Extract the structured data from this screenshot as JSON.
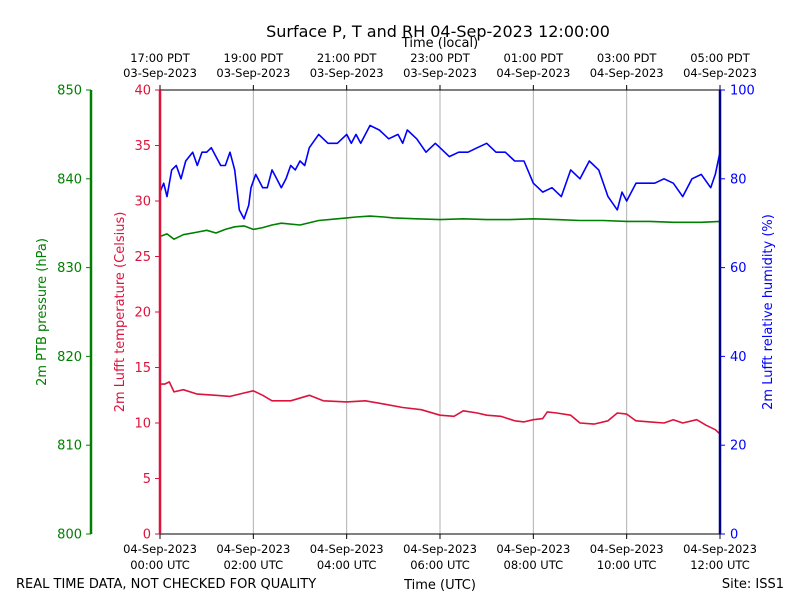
{
  "chart_data": {
    "type": "line",
    "title": "Surface P, T and RH 04-Sep-2023 12:00:00",
    "top_axis_title": "Time (local)",
    "bottom_axis_title": "Time (UTC)",
    "footer_left": "REAL TIME DATA, NOT CHECKED FOR QUALITY",
    "footer_right": "Site: ISS1",
    "x_range_hours_utc": [
      0,
      12
    ],
    "grid": "vertical lines at 2-hour ticks",
    "bottom_ticks": [
      {
        "h": 0,
        "line1": "04-Sep-2023",
        "line2": "00:00 UTC"
      },
      {
        "h": 2,
        "line1": "04-Sep-2023",
        "line2": "02:00 UTC"
      },
      {
        "h": 4,
        "line1": "04-Sep-2023",
        "line2": "04:00 UTC"
      },
      {
        "h": 6,
        "line1": "04-Sep-2023",
        "line2": "06:00 UTC"
      },
      {
        "h": 8,
        "line1": "04-Sep-2023",
        "line2": "08:00 UTC"
      },
      {
        "h": 10,
        "line1": "04-Sep-2023",
        "line2": "10:00 UTC"
      },
      {
        "h": 12,
        "line1": "04-Sep-2023",
        "line2": "12:00 UTC"
      }
    ],
    "top_ticks": [
      {
        "h": 0,
        "line1": "17:00 PDT",
        "line2": "03-Sep-2023"
      },
      {
        "h": 2,
        "line1": "19:00 PDT",
        "line2": "03-Sep-2023"
      },
      {
        "h": 4,
        "line1": "21:00 PDT",
        "line2": "03-Sep-2023"
      },
      {
        "h": 6,
        "line1": "23:00 PDT",
        "line2": "03-Sep-2023"
      },
      {
        "h": 8,
        "line1": "01:00 PDT",
        "line2": "04-Sep-2023"
      },
      {
        "h": 10,
        "line1": "03:00 PDT",
        "line2": "04-Sep-2023"
      },
      {
        "h": 12,
        "line1": "05:00 PDT",
        "line2": "04-Sep-2023"
      }
    ],
    "axes": {
      "pressure": {
        "label": "2m PTB pressure (hPa)",
        "color": "#008000",
        "range": [
          800,
          850
        ],
        "ticks": [
          800,
          810,
          820,
          830,
          840,
          850
        ]
      },
      "temperature": {
        "label": "2m Lufft temperature (Celsius)",
        "color": "#dc143c",
        "range": [
          0,
          40
        ],
        "ticks": [
          0,
          5,
          10,
          15,
          20,
          25,
          30,
          35,
          40
        ]
      },
      "humidity": {
        "label": "2m Lufft relative humidity (%)",
        "color": "#0000ff",
        "range": [
          0,
          100
        ],
        "ticks": [
          0,
          20,
          40,
          60,
          80,
          100
        ]
      }
    },
    "series": [
      {
        "axis": "pressure",
        "color": "#008000",
        "x": [
          0,
          0.15,
          0.3,
          0.5,
          0.8,
          1.0,
          1.2,
          1.4,
          1.6,
          1.8,
          2.0,
          2.2,
          2.4,
          2.6,
          3.0,
          3.4,
          3.8,
          4.0,
          4.2,
          4.5,
          4.8,
          5.0,
          5.5,
          6.0,
          6.5,
          7.0,
          7.5,
          8.0,
          8.5,
          9.0,
          9.5,
          10.0,
          10.5,
          11.0,
          11.3,
          11.6,
          12.0
        ],
        "y": [
          833.5,
          833.8,
          833.2,
          833.7,
          834.0,
          834.2,
          833.9,
          834.3,
          834.6,
          834.7,
          834.3,
          834.5,
          834.8,
          835.0,
          834.8,
          835.3,
          835.5,
          835.6,
          835.7,
          835.8,
          835.7,
          835.6,
          835.5,
          835.4,
          835.5,
          835.4,
          835.4,
          835.5,
          835.4,
          835.3,
          835.3,
          835.2,
          835.2,
          835.1,
          835.1,
          835.1,
          835.2
        ]
      },
      {
        "axis": "temperature",
        "color": "#dc143c",
        "x": [
          0,
          0.1,
          0.2,
          0.3,
          0.5,
          0.8,
          1.2,
          1.5,
          1.8,
          2.0,
          2.2,
          2.4,
          2.8,
          3.2,
          3.5,
          4.0,
          4.4,
          4.8,
          5.2,
          5.6,
          6.0,
          6.3,
          6.5,
          6.8,
          7.0,
          7.3,
          7.6,
          7.8,
          8.0,
          8.2,
          8.3,
          8.5,
          8.8,
          9.0,
          9.3,
          9.6,
          9.8,
          10.0,
          10.2,
          10.5,
          10.8,
          11.0,
          11.2,
          11.5,
          11.7,
          11.9,
          12.0
        ],
        "y": [
          13.5,
          13.5,
          13.7,
          12.8,
          13.0,
          12.6,
          12.5,
          12.4,
          12.7,
          12.9,
          12.5,
          12.0,
          12.0,
          12.5,
          12.0,
          11.9,
          12.0,
          11.7,
          11.4,
          11.2,
          10.7,
          10.6,
          11.1,
          10.9,
          10.7,
          10.6,
          10.2,
          10.1,
          10.3,
          10.4,
          11.0,
          10.9,
          10.7,
          10.0,
          9.9,
          10.2,
          10.9,
          10.8,
          10.2,
          10.1,
          10.0,
          10.3,
          10.0,
          10.3,
          9.8,
          9.4,
          9.0
        ]
      },
      {
        "axis": "humidity",
        "color": "#0000ff",
        "x": [
          0,
          0.08,
          0.15,
          0.25,
          0.35,
          0.45,
          0.55,
          0.7,
          0.8,
          0.9,
          1.0,
          1.1,
          1.2,
          1.3,
          1.4,
          1.5,
          1.6,
          1.7,
          1.8,
          1.9,
          1.95,
          2.05,
          2.1,
          2.2,
          2.3,
          2.4,
          2.5,
          2.6,
          2.7,
          2.8,
          2.9,
          3.0,
          3.1,
          3.2,
          3.4,
          3.6,
          3.8,
          4.0,
          4.1,
          4.2,
          4.3,
          4.5,
          4.7,
          4.9,
          5.1,
          5.2,
          5.3,
          5.5,
          5.7,
          5.9,
          6.0,
          6.2,
          6.4,
          6.6,
          6.8,
          7.0,
          7.2,
          7.4,
          7.6,
          7.8,
          8.0,
          8.2,
          8.4,
          8.6,
          8.8,
          9.0,
          9.2,
          9.4,
          9.6,
          9.8,
          9.9,
          10.0,
          10.2,
          10.4,
          10.6,
          10.8,
          11.0,
          11.2,
          11.4,
          11.6,
          11.8,
          11.9,
          12.0
        ],
        "y": [
          77,
          79,
          76,
          82,
          83,
          80,
          84,
          86,
          83,
          86,
          86,
          87,
          85,
          83,
          83,
          86,
          82,
          73,
          71,
          74,
          78,
          81,
          80,
          78,
          78,
          82,
          80,
          78,
          80,
          83,
          82,
          84,
          83,
          87,
          90,
          88,
          88,
          90,
          88,
          90,
          88,
          92,
          91,
          89,
          90,
          88,
          91,
          89,
          86,
          88,
          87,
          85,
          86,
          86,
          87,
          88,
          86,
          86,
          84,
          84,
          79,
          77,
          78,
          76,
          82,
          80,
          84,
          82,
          76,
          73,
          77,
          75,
          79,
          79,
          79,
          80,
          79,
          76,
          80,
          81,
          78,
          81,
          86
        ]
      }
    ]
  }
}
